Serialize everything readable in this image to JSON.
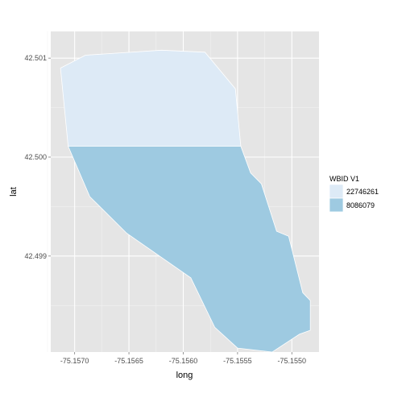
{
  "chart_data": {
    "type": "map",
    "xlabel": "long",
    "ylabel": "lat",
    "xlim": [
      -75.15722,
      -75.15475
    ],
    "ylim": [
      42.49803,
      42.50127
    ],
    "x_ticks": [
      -75.157,
      -75.1565,
      -75.156,
      -75.1555,
      -75.155
    ],
    "x_tick_labels": [
      "-75.1570",
      "-75.1565",
      "-75.1560",
      "-75.1555",
      "-75.1550"
    ],
    "y_ticks": [
      42.499,
      42.5,
      42.501
    ],
    "y_tick_labels": [
      "42.499",
      "42.500",
      "42.501"
    ],
    "minor_x_ticks": [
      -75.15725,
      -75.15675,
      -75.15625,
      -75.15575,
      -75.15525
    ],
    "minor_y_ticks": [
      42.4985,
      42.4995,
      42.5005
    ],
    "grid": true,
    "panel_background": "#e5e5e5",
    "grid_color": "#ffffff",
    "legend": {
      "title": "WBID V1",
      "position": "right",
      "entries": [
        {
          "label": "22746261",
          "color": "#ddeaf6"
        },
        {
          "label": "8086079",
          "color": "#9ecae1"
        }
      ]
    },
    "polygons": [
      {
        "name": "22746261",
        "color": "#ddeaf6",
        "points": [
          [
            -75.15713,
            42.5009
          ],
          [
            -75.1569,
            42.50103
          ],
          [
            -75.1562,
            42.50108
          ],
          [
            -75.1558,
            42.50106
          ],
          [
            -75.15552,
            42.50069
          ],
          [
            -75.15547,
            42.50011
          ],
          [
            -75.15706,
            42.50011
          ]
        ]
      },
      {
        "name": "8086079",
        "color": "#9ecae1",
        "points": [
          [
            -75.15706,
            42.50011
          ],
          [
            -75.15547,
            42.50011
          ],
          [
            -75.15538,
            42.49984
          ],
          [
            -75.15528,
            42.49973
          ],
          [
            -75.15514,
            42.49925
          ],
          [
            -75.15503,
            42.4992
          ],
          [
            -75.1549,
            42.49863
          ],
          [
            -75.15483,
            42.49855
          ],
          [
            -75.15483,
            42.49825
          ],
          [
            -75.15493,
            42.49821
          ],
          [
            -75.15518,
            42.49803
          ],
          [
            -75.1555,
            42.49807
          ],
          [
            -75.15571,
            42.49828
          ],
          [
            -75.15593,
            42.49878
          ],
          [
            -75.15652,
            42.49923
          ],
          [
            -75.15686,
            42.4996
          ]
        ]
      }
    ]
  }
}
